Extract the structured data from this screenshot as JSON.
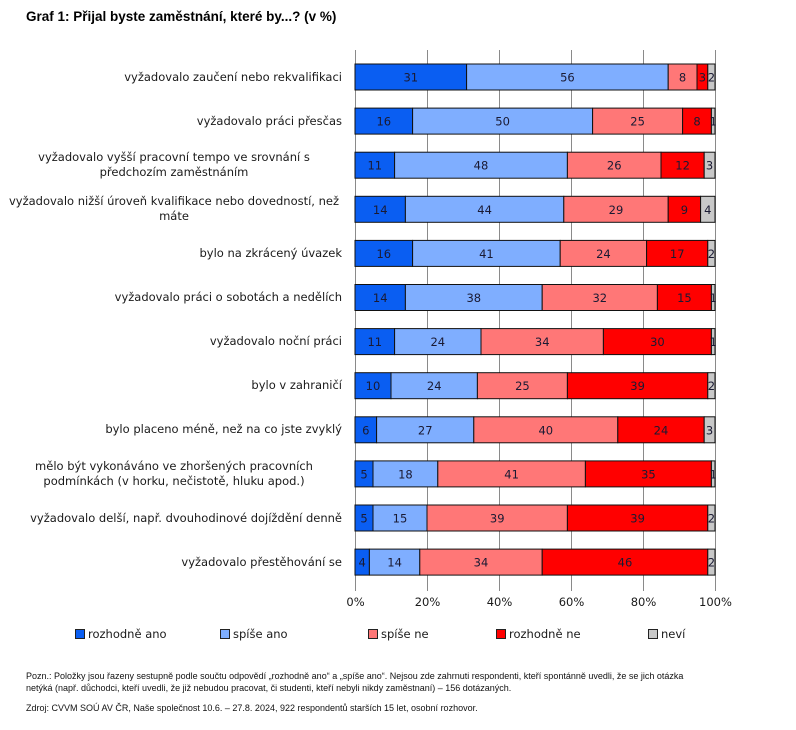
{
  "title": "Graf 1: Přijal byste zaměstnání, které by...? (v %)",
  "chart_data": {
    "type": "bar",
    "orientation": "horizontal",
    "stacked": "percent",
    "title": "Graf 1: Přijal byste zaměstnání, které by...? (v %)",
    "xlabel": "",
    "ylabel": "",
    "xlim": [
      0,
      100
    ],
    "x_ticks": [
      "0%",
      "20%",
      "40%",
      "60%",
      "80%",
      "100%"
    ],
    "grid": true,
    "legend_position": "bottom",
    "categories": [
      "vyžadovalo zaučení nebo rekvalifikaci",
      "vyžadovalo práci přesčas",
      "vyžadovalo vyšší pracovní tempo ve srovnání s předchozím zaměstnáním",
      "vyžadovalo nižší úroveň kvalifikace nebo dovedností, než máte",
      "bylo na zkrácený úvazek",
      "vyžadovalo práci o sobotách a nedělích",
      "vyžadovalo noční práci",
      "bylo v zahraničí",
      "bylo placeno méně, než na co jste zvyklý",
      "mělo být vykonáváno ve zhoršených pracovních podmínkách (v horku, nečistotě, hluku apod.)",
      "vyžadovalo delší, např. dvouhodinové dojíždění denně",
      "vyžadovalo přestěhování se"
    ],
    "category_lines": [
      [
        "vyžadovalo zaučení nebo rekvalifikaci"
      ],
      [
        "vyžadovalo práci přesčas"
      ],
      [
        "vyžadovalo vyšší pracovní tempo ve srovnání s",
        "předchozím zaměstnáním"
      ],
      [
        "vyžadovalo nižší úroveň kvalifikace nebo dovedností, než",
        "máte"
      ],
      [
        "bylo na zkrácený úvazek"
      ],
      [
        "vyžadovalo práci o sobotách a nedělích"
      ],
      [
        "vyžadovalo noční práci"
      ],
      [
        "bylo v zahraničí"
      ],
      [
        "bylo placeno méně, než na co jste zvyklý"
      ],
      [
        "mělo být vykonáváno ve zhoršených pracovních",
        "podmínkách (v horku, nečistotě, hluku apod.)"
      ],
      [
        "vyžadovalo delší, např. dvouhodinové dojíždění denně"
      ],
      [
        "vyžadovalo přestěhování se"
      ]
    ],
    "series": [
      {
        "name": "rozhodně ano",
        "color": "#0A5EF2",
        "values": [
          31,
          16,
          11,
          14,
          16,
          14,
          11,
          10,
          6,
          5,
          5,
          4
        ]
      },
      {
        "name": "spíše ano",
        "color": "#7FAEFF",
        "values": [
          56,
          50,
          48,
          44,
          41,
          38,
          24,
          24,
          27,
          18,
          15,
          14
        ]
      },
      {
        "name": "spíše ne",
        "color": "#FF7777",
        "values": [
          8,
          25,
          26,
          29,
          24,
          32,
          34,
          25,
          40,
          41,
          39,
          34
        ]
      },
      {
        "name": "rozhodně ne",
        "color": "#FF0000",
        "values": [
          3,
          8,
          12,
          9,
          17,
          15,
          30,
          39,
          24,
          35,
          39,
          46
        ]
      },
      {
        "name": "neví",
        "color": "#C8C8C8",
        "values": [
          2,
          1,
          3,
          4,
          2,
          1,
          1,
          2,
          3,
          1,
          2,
          2
        ]
      }
    ]
  },
  "notes": {
    "line1": "Pozn.: Položky jsou řazeny sestupně podle součtu odpovědí „rozhodně ano“ a „spíše ano“. Nejsou zde zahrnuti respondenti, kteří spontánně uvedli, že se jich otázka",
    "line2": "netýká (např. důchodci, kteří uvedli, že již nebudou pracovat, či studenti, kteří nebyli nikdy zaměstnaní) – 156 dotázaných.",
    "source": "Zdroj: CVVM SOÚ AV ČR, Naše společnost 10.6. – 27.8. 2024, 922 respondentů starších 15 let, osobní rozhovor."
  }
}
